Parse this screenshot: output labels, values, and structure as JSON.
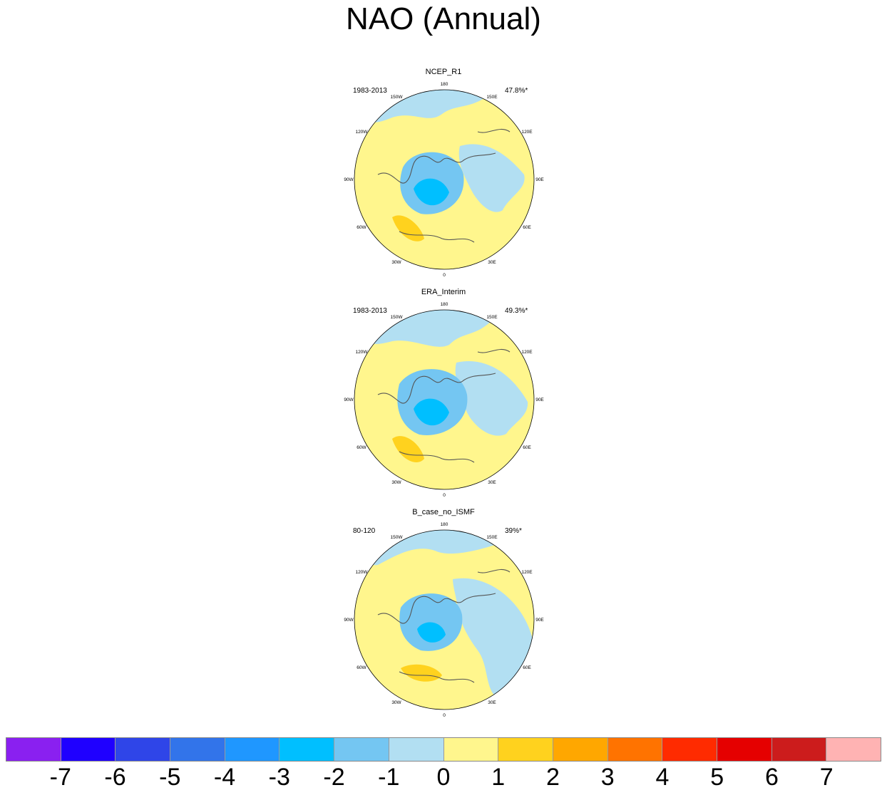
{
  "title": "NAO (Annual)",
  "panels": [
    {
      "name": "NCEP_R1",
      "period": "1983-2013",
      "pct": "47.8%*"
    },
    {
      "name": "ERA_Interim",
      "period": "1983-2013",
      "pct": "49.3%*"
    },
    {
      "name": "B_case_no_ISMF",
      "period": "80-120",
      "pct": "39%*"
    }
  ],
  "lon_labels": [
    "180",
    "150E",
    "120E",
    "90E",
    "60E",
    "30E",
    "0",
    "30W",
    "60W",
    "90W",
    "120W",
    "150W"
  ],
  "colorbar": {
    "labels": [
      "-7",
      "-6",
      "-5",
      "-4",
      "-3",
      "-2",
      "-1",
      "0",
      "1",
      "2",
      "3",
      "4",
      "5",
      "6",
      "7"
    ],
    "colors": [
      "#8a20f0",
      "#1f00ff",
      "#2f45e8",
      "#3274ea",
      "#1f97ff",
      "#00bfff",
      "#74c6f2",
      "#b2dff2",
      "#fff68d",
      "#ffd21e",
      "#ffa700",
      "#ff7300",
      "#ff2b00",
      "#e50000",
      "#cc1c1c",
      "#ffb3b3"
    ]
  }
}
